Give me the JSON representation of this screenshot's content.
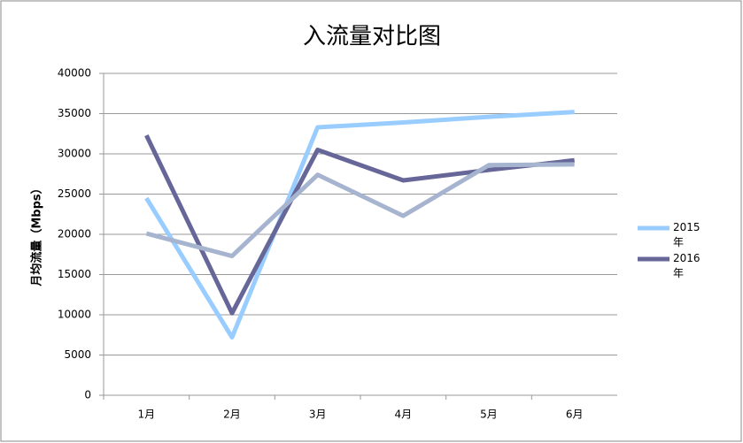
{
  "chart_data": {
    "type": "line",
    "title": "入流量对比图",
    "y_label": "月均流量（Mbps）",
    "categories": [
      "1月",
      "2月",
      "3月",
      "4月",
      "5月",
      "6月"
    ],
    "series": [
      {
        "name": "2015年",
        "color": "#99ccff",
        "values": [
          24500,
          7200,
          33300,
          33900,
          34600,
          35200
        ]
      },
      {
        "name": "2016年",
        "color": "#666699",
        "values": [
          32300,
          10200,
          30500,
          26700,
          28000,
          29200
        ]
      },
      {
        "color": "#a6b4cf",
        "values": [
          20100,
          17300,
          27400,
          22300,
          28600,
          28700
        ]
      }
    ],
    "ylim": [
      0,
      40000
    ],
    "yticks": [
      0,
      5000,
      10000,
      15000,
      20000,
      25000,
      30000,
      35000,
      40000
    ],
    "grid": true
  }
}
